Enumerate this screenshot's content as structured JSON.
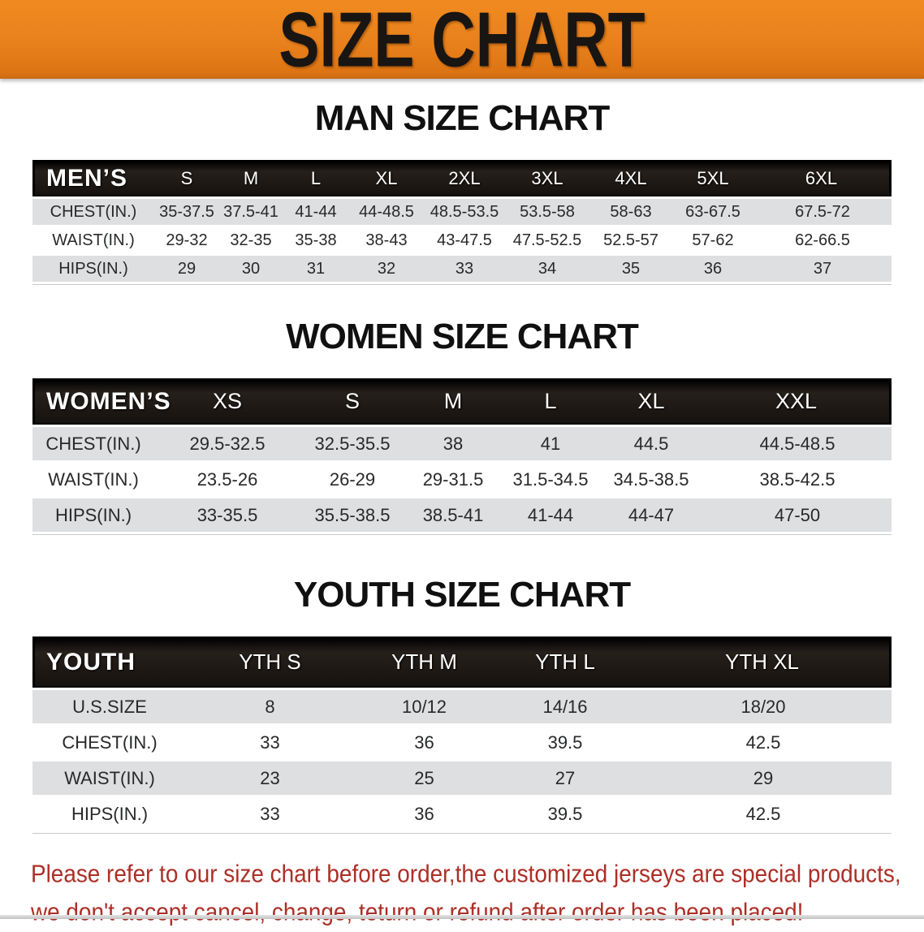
{
  "banner": {
    "title": "SIZE CHART",
    "bg_color": "#E8811C",
    "text_color": "#181512"
  },
  "sections": [
    {
      "heading": "MAN SIZE CHART",
      "table": {
        "corner_label": "MEN’S",
        "columns": [
          "S",
          "M",
          "L",
          "XL",
          "2XL",
          "3XL",
          "4XL",
          "5XL",
          "6XL"
        ],
        "rows": [
          {
            "label": "CHEST(IN.)",
            "values": [
              "35-37.5",
              "37.5-41",
              "41-44",
              "44-48.5",
              "48.5-53.5",
              "53.5-58",
              "58-63",
              "63-67.5",
              "67.5-72"
            ]
          },
          {
            "label": "WAIST(IN.)",
            "values": [
              "29-32",
              "32-35",
              "35-38",
              "38-43",
              "43-47.5",
              "47.5-52.5",
              "52.5-57",
              "57-62",
              "62-66.5"
            ]
          },
          {
            "label": "HIPS(IN.)",
            "values": [
              "29",
              "30",
              "31",
              "32",
              "33",
              "34",
              "35",
              "36",
              "37"
            ]
          }
        ]
      }
    },
    {
      "heading": "WOMEN SIZE CHART",
      "table": {
        "corner_label": "WOMEN’S",
        "columns": [
          "XS",
          "S",
          "M",
          "L",
          "XL",
          "XXL"
        ],
        "rows": [
          {
            "label": "CHEST(IN.)",
            "values": [
              "29.5-32.5",
              "32.5-35.5",
              "38",
              "41",
              "44.5",
              "44.5-48.5"
            ]
          },
          {
            "label": "WAIST(IN.)",
            "values": [
              "23.5-26",
              "26-29",
              "29-31.5",
              "31.5-34.5",
              "34.5-38.5",
              "38.5-42.5"
            ]
          },
          {
            "label": "HIPS(IN.)",
            "values": [
              "33-35.5",
              "35.5-38.5",
              "38.5-41",
              "41-44",
              "44-47",
              "47-50"
            ]
          }
        ]
      }
    },
    {
      "heading": "YOUTH SIZE CHART",
      "table": {
        "corner_label": "YOUTH",
        "columns": [
          "YTH S",
          "YTH M",
          "YTH L",
          "YTH XL"
        ],
        "rows": [
          {
            "label": "U.S.SIZE",
            "values": [
              "8",
              "10/12",
              "14/16",
              "18/20"
            ]
          },
          {
            "label": "CHEST(IN.)",
            "values": [
              "33",
              "36",
              "39.5",
              "42.5"
            ]
          },
          {
            "label": "WAIST(IN.)",
            "values": [
              "23",
              "25",
              "27",
              "29"
            ]
          },
          {
            "label": "HIPS(IN.)",
            "values": [
              "33",
              "36",
              "39.5",
              "42.5"
            ]
          }
        ]
      }
    }
  ],
  "disclaimer": {
    "color": "#AC2F27",
    "lines": [
      "Please refer to our size chart before order,the customized jerseys are special products,",
      "we don't accept cancel, change, teturn or refund after order has been placed!"
    ]
  }
}
